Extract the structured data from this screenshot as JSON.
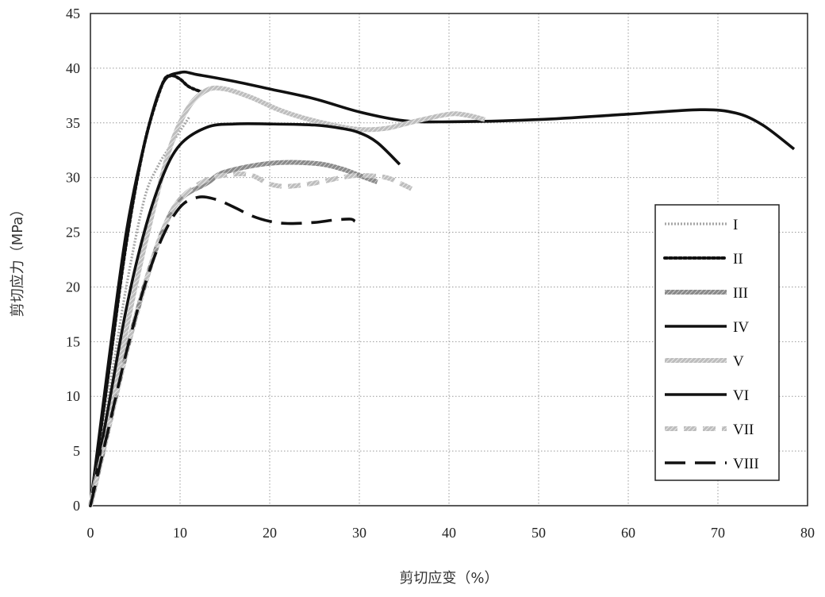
{
  "chart_data": {
    "type": "line",
    "title": "",
    "xlabel": "剪切应变（%）",
    "ylabel": "剪切应力（MPa）",
    "xlim": [
      0,
      80
    ],
    "ylim": [
      0,
      45
    ],
    "x_ticks": [
      0,
      10,
      20,
      30,
      40,
      50,
      60,
      70,
      80
    ],
    "y_ticks": [
      0,
      5,
      10,
      15,
      20,
      25,
      30,
      35,
      40,
      45
    ],
    "grid": true,
    "legend_position": "right",
    "series": [
      {
        "name": "I",
        "style": "dotted-light",
        "points": [
          [
            0,
            0
          ],
          [
            2,
            10
          ],
          [
            4,
            20
          ],
          [
            6,
            28
          ],
          [
            7.5,
            31
          ],
          [
            9,
            33
          ],
          [
            11,
            35.5
          ]
        ]
      },
      {
        "name": "II",
        "style": "dotted-heavy",
        "points": [
          [
            0,
            0
          ],
          [
            2,
            12
          ],
          [
            4,
            24
          ],
          [
            6,
            33
          ],
          [
            8,
            38.5
          ],
          [
            9,
            39.3
          ],
          [
            10,
            39
          ],
          [
            11,
            38.3
          ],
          [
            12.5,
            37.8
          ]
        ]
      },
      {
        "name": "III",
        "style": "hatched",
        "points": [
          [
            0,
            0
          ],
          [
            2,
            7
          ],
          [
            4,
            14
          ],
          [
            6,
            20
          ],
          [
            8,
            25
          ],
          [
            10,
            28
          ],
          [
            13,
            29.5
          ],
          [
            15,
            30.5
          ],
          [
            20,
            31.3
          ],
          [
            25,
            31.3
          ],
          [
            28,
            30.8
          ],
          [
            30,
            30.2
          ],
          [
            32,
            29.6
          ]
        ]
      },
      {
        "name": "IV",
        "style": "solid",
        "points": [
          [
            0,
            0
          ],
          [
            2,
            13
          ],
          [
            4,
            25
          ],
          [
            6,
            33
          ],
          [
            8,
            38.5
          ],
          [
            10,
            39.6
          ],
          [
            12,
            39.4
          ],
          [
            16,
            38.8
          ],
          [
            20,
            38.1
          ],
          [
            25,
            37.2
          ],
          [
            30,
            36
          ],
          [
            35,
            35.2
          ],
          [
            40,
            35.1
          ],
          [
            50,
            35.3
          ],
          [
            60,
            35.8
          ],
          [
            68,
            36.2
          ],
          [
            72,
            35.9
          ],
          [
            75,
            34.8
          ],
          [
            78.5,
            32.6
          ]
        ]
      },
      {
        "name": "V",
        "style": "hatched-light",
        "points": [
          [
            0,
            0
          ],
          [
            3,
            12
          ],
          [
            5,
            20
          ],
          [
            7,
            27
          ],
          [
            9,
            33
          ],
          [
            11,
            36.5
          ],
          [
            13,
            38
          ],
          [
            15,
            38.1
          ],
          [
            18,
            37.3
          ],
          [
            21,
            36.2
          ],
          [
            24,
            35.4
          ],
          [
            27,
            34.8
          ],
          [
            30,
            34.4
          ],
          [
            33,
            34.5
          ],
          [
            36,
            35.1
          ],
          [
            40,
            35.8
          ],
          [
            42,
            35.7
          ],
          [
            44,
            35.3
          ]
        ]
      },
      {
        "name": "VI",
        "style": "solid",
        "points": [
          [
            0,
            0
          ],
          [
            2,
            9
          ],
          [
            4,
            18
          ],
          [
            6,
            25
          ],
          [
            8,
            30
          ],
          [
            10,
            33
          ],
          [
            13,
            34.6
          ],
          [
            16,
            34.9
          ],
          [
            20,
            34.9
          ],
          [
            25,
            34.8
          ],
          [
            28,
            34.5
          ],
          [
            30,
            34.1
          ],
          [
            32,
            33.2
          ],
          [
            34.5,
            31.2
          ]
        ]
      },
      {
        "name": "VII",
        "style": "dashed-light",
        "points": [
          [
            0,
            0
          ],
          [
            2,
            7
          ],
          [
            4,
            14
          ],
          [
            6,
            20
          ],
          [
            8,
            25
          ],
          [
            10,
            28
          ],
          [
            13,
            29.8
          ],
          [
            16,
            30.3
          ],
          [
            18,
            30.2
          ],
          [
            20,
            29.4
          ],
          [
            22,
            29.2
          ],
          [
            25,
            29.5
          ],
          [
            28,
            30
          ],
          [
            30,
            30.2
          ],
          [
            33,
            30
          ],
          [
            35,
            29.3
          ],
          [
            36,
            28.9
          ]
        ]
      },
      {
        "name": "VIII",
        "style": "long-dashed",
        "points": [
          [
            0,
            0
          ],
          [
            2,
            7
          ],
          [
            4,
            14
          ],
          [
            6,
            20
          ],
          [
            8,
            24.5
          ],
          [
            10,
            27.3
          ],
          [
            12,
            28.2
          ],
          [
            14,
            28
          ],
          [
            16,
            27.3
          ],
          [
            18,
            26.5
          ],
          [
            20,
            26
          ],
          [
            22,
            25.8
          ],
          [
            25,
            25.9
          ],
          [
            27,
            26.1
          ],
          [
            29,
            26.2
          ],
          [
            29.5,
            26
          ]
        ]
      }
    ]
  }
}
